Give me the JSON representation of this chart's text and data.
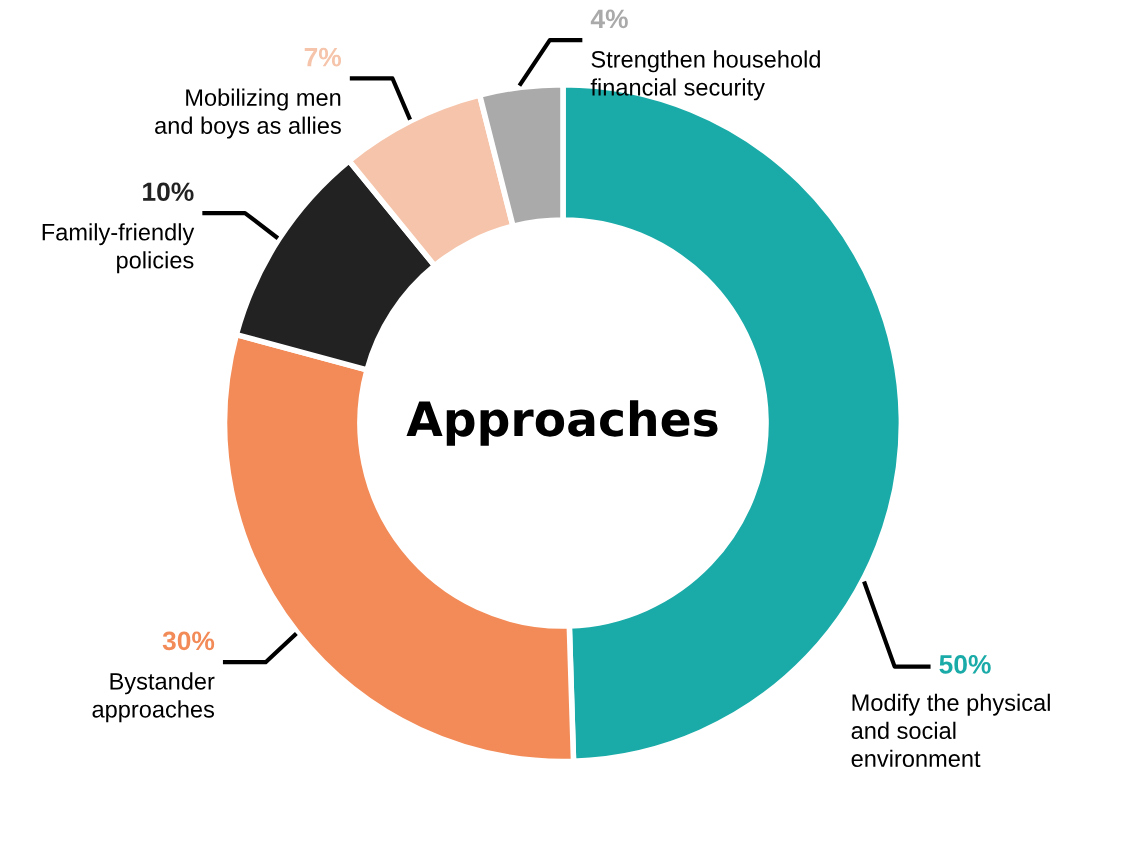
{
  "chart_data": {
    "type": "donut",
    "categories": [
      "Modify the physical\nand social\nenvironment",
      "Bystander\napproaches",
      "Family-friendly\npolicies",
      "Mobilizing men\nand boys as allies",
      "Strengthen household\nfinancial security"
    ],
    "values": [
      50,
      30,
      10,
      7,
      4
    ],
    "value_labels": [
      "50%",
      "30%",
      "10%",
      "7%",
      "4%"
    ],
    "colors": [
      "#1aaba8",
      "#f28b58",
      "#222222",
      "#f5c4aa",
      "#aaaaaa"
    ],
    "annotations": [
      "Approaches"
    ],
    "legend": false
  }
}
